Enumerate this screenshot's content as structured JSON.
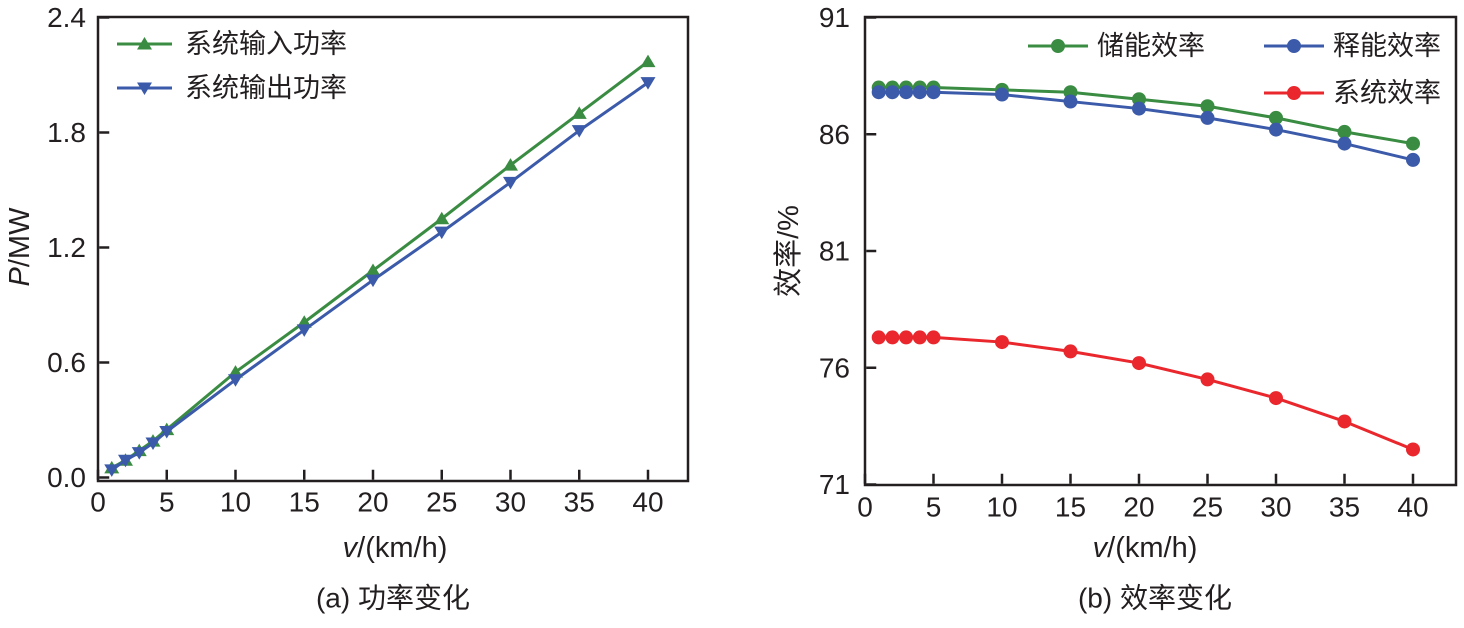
{
  "figure_background": "#ffffff",
  "colors": {
    "axis": "#231f20",
    "text": "#231f20",
    "green": "#3a8c42",
    "blue": "#3b5aa9",
    "red": "#e9272c"
  },
  "chart_data": [
    {
      "id": "power-chart",
      "type": "line",
      "caption": "(a) 功率变化",
      "xlabel": "v/(km/h)",
      "ylabel": "P/MW",
      "xlim": [
        0,
        42.9
      ],
      "ylim": [
        0,
        2.4
      ],
      "xticks": [
        "0",
        "5",
        "10",
        "15",
        "20",
        "25",
        "30",
        "35",
        "40"
      ],
      "xtick_values": [
        0,
        5,
        10,
        15,
        20,
        25,
        30,
        35,
        40
      ],
      "yticks": [
        "0.0",
        "0.6",
        "1.2",
        "1.8",
        "2.4"
      ],
      "ytick_values": [
        0,
        0.6,
        1.2,
        1.8,
        2.4
      ],
      "grid": false,
      "legend_position": "top-left-inside",
      "x": [
        1,
        2,
        3,
        4,
        5,
        10,
        15,
        20,
        25,
        30,
        35,
        40
      ],
      "series": [
        {
          "name": "系统输入功率",
          "color": "#3a8c42",
          "marker": "triangle-up",
          "values": [
            0.05,
            0.09,
            0.14,
            0.19,
            0.25,
            0.55,
            0.81,
            1.08,
            1.35,
            1.63,
            1.9,
            2.17
          ]
        },
        {
          "name": "系统输出功率",
          "color": "#3b5aa9",
          "marker": "triangle-down",
          "values": [
            0.04,
            0.09,
            0.13,
            0.18,
            0.24,
            0.51,
            0.77,
            1.03,
            1.28,
            1.54,
            1.81,
            2.06
          ]
        }
      ]
    },
    {
      "id": "efficiency-chart",
      "type": "line",
      "caption": "(b) 效率变化",
      "xlabel": "v/(km/h)",
      "ylabel": "效率/%",
      "xlim": [
        0,
        43.1
      ],
      "ylim": [
        71,
        91
      ],
      "xticks": [
        "0",
        "5",
        "10",
        "15",
        "20",
        "25",
        "30",
        "35",
        "40"
      ],
      "xtick_values": [
        0,
        5,
        10,
        15,
        20,
        25,
        30,
        35,
        40
      ],
      "yticks": [
        "71",
        "76",
        "81",
        "86",
        "91"
      ],
      "ytick_values": [
        71,
        76,
        81,
        86,
        91
      ],
      "grid": false,
      "legend_position": "top-inside-two-columns",
      "x": [
        1,
        2,
        3,
        4,
        5,
        10,
        15,
        20,
        25,
        30,
        35,
        40
      ],
      "series": [
        {
          "name": "储能效率",
          "color": "#3a8c42",
          "marker": "circle",
          "values": [
            88.0,
            88.0,
            88.0,
            88.0,
            88.0,
            87.9,
            87.8,
            87.5,
            87.2,
            86.7,
            86.1,
            85.6
          ]
        },
        {
          "name": "释能效率",
          "color": "#3b5aa9",
          "marker": "circle",
          "values": [
            87.8,
            87.8,
            87.8,
            87.8,
            87.8,
            87.7,
            87.4,
            87.1,
            86.7,
            86.2,
            85.6,
            84.9
          ]
        },
        {
          "name": "系统效率",
          "color": "#e9272c",
          "marker": "circle",
          "values": [
            77.3,
            77.3,
            77.3,
            77.3,
            77.3,
            77.1,
            76.7,
            76.2,
            75.5,
            74.7,
            73.7,
            72.5
          ]
        }
      ]
    }
  ]
}
